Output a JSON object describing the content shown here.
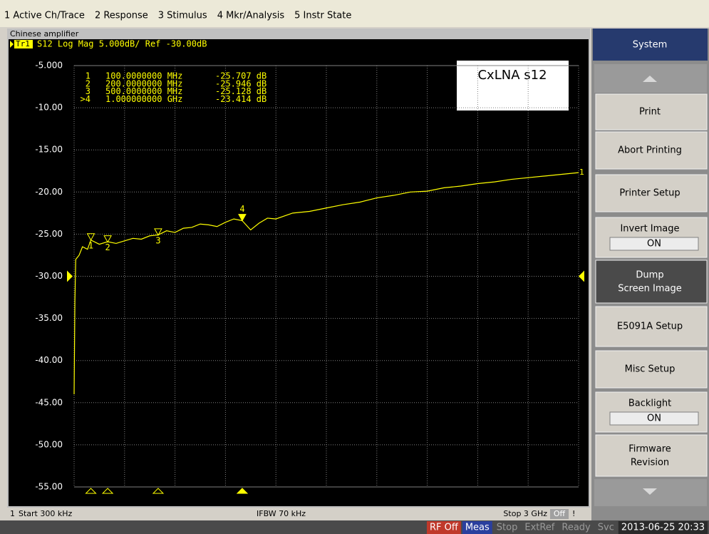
{
  "menu": [
    "1 Active Ch/Trace",
    "2 Response",
    "3 Stimulus",
    "4 Mkr/Analysis",
    "5 Instr State"
  ],
  "window_title": "Chinese amplifier",
  "chart_data": {
    "type": "line",
    "trace_badge": "Tr1",
    "trace_header": "S12 Log Mag 5.000dB/ Ref -30.00dB",
    "annotation": "CxLNA s12",
    "trace_label": "1",
    "color": "#ffff00",
    "xlim": [
      0.0003,
      3
    ],
    "ylim": [
      -55,
      -5
    ],
    "ref_level": -30,
    "yticks": [
      {
        "value": -5,
        "label": "-5.000"
      },
      {
        "value": -10,
        "label": "-10.00"
      },
      {
        "value": -15,
        "label": "-15.00"
      },
      {
        "value": -20,
        "label": "-20.00"
      },
      {
        "value": -25,
        "label": "-25.00"
      },
      {
        "value": -30,
        "label": "-30.00"
      },
      {
        "value": -35,
        "label": "-35.00"
      },
      {
        "value": -40,
        "label": "-40.00"
      },
      {
        "value": -45,
        "label": "-45.00"
      },
      {
        "value": -50,
        "label": "-50.00"
      },
      {
        "value": -55,
        "label": "-55.00"
      }
    ],
    "x": [
      0.0003,
      0.005,
      0.01,
      0.03,
      0.05,
      0.08,
      0.1,
      0.15,
      0.2,
      0.25,
      0.3,
      0.35,
      0.4,
      0.45,
      0.5,
      0.55,
      0.6,
      0.65,
      0.7,
      0.75,
      0.8,
      0.85,
      0.9,
      0.95,
      1.0,
      1.05,
      1.1,
      1.15,
      1.2,
      1.3,
      1.4,
      1.5,
      1.6,
      1.7,
      1.8,
      1.9,
      2.0,
      2.1,
      2.2,
      2.3,
      2.4,
      2.5,
      2.6,
      2.7,
      2.8,
      2.9,
      3.0
    ],
    "values": [
      -44,
      -33,
      -28,
      -27.5,
      -26.5,
      -26.8,
      -25.7,
      -26.2,
      -25.9,
      -26.1,
      -25.8,
      -25.5,
      -25.6,
      -25.2,
      -25.1,
      -24.6,
      -24.8,
      -24.3,
      -24.2,
      -23.8,
      -23.9,
      -24.1,
      -23.6,
      -23.2,
      -23.4,
      -24.5,
      -23.7,
      -23.1,
      -23.2,
      -22.5,
      -22.3,
      -21.9,
      -21.5,
      -21.2,
      -20.7,
      -20.4,
      -20.0,
      -19.9,
      -19.5,
      -19.3,
      -19.0,
      -18.8,
      -18.5,
      -18.3,
      -18.1,
      -17.9,
      -17.7
    ],
    "markers": [
      {
        "label": "1",
        "freq": "100.0000000 MHz",
        "reading": "-25.707 dB",
        "x": 0.1,
        "value": -25.707
      },
      {
        "label": "2",
        "freq": "200.0000000 MHz",
        "reading": "-25.946 dB",
        "x": 0.2,
        "value": -25.946
      },
      {
        "label": "3",
        "freq": "500.0000000 MHz",
        "reading": "-25.128 dB",
        "x": 0.5,
        "value": -25.128
      },
      {
        "label": ">4",
        "freq": "1.000000000 GHz",
        "reading": "-23.414 dB",
        "x": 1.0,
        "value": -23.414,
        "tag": "4"
      }
    ]
  },
  "status_line": {
    "channel": "1",
    "start": "Start 300 kHz",
    "ifbw": "IFBW 70 kHz",
    "stop": "Stop 3 GHz",
    "off": "Off",
    "flag": "!"
  },
  "status_bar": [
    "RF Off",
    "Meas",
    "Stop",
    "ExtRef",
    "Ready",
    "Svc",
    "2013-06-25 20:33"
  ],
  "softkeys": {
    "title": "System",
    "buttons": [
      {
        "label": "Print"
      },
      {
        "label": "Abort Printing"
      },
      {
        "label": "Printer Setup"
      },
      {
        "label": "Invert Image",
        "state": "ON"
      },
      {
        "label": "Dump",
        "label2": "Screen Image"
      },
      {
        "label": "E5091A Setup"
      },
      {
        "label": "Misc Setup"
      },
      {
        "label": "Backlight",
        "state": "ON"
      },
      {
        "label": "Firmware",
        "label2": "Revision"
      }
    ]
  }
}
